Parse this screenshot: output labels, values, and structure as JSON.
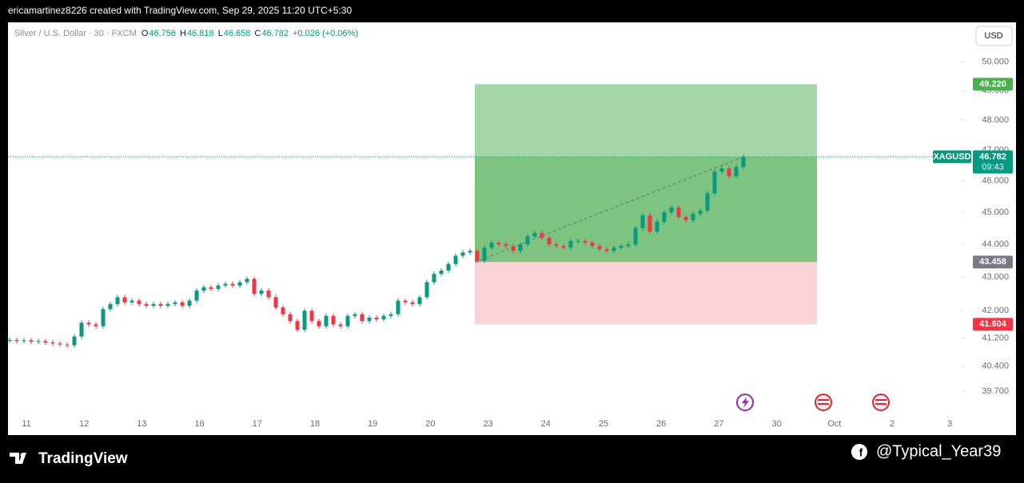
{
  "header": {
    "caption": "ericamartinez8226 created with TradingView.com, Sep 29, 2025 11:20 UTC+5:30",
    "symbol_title": "Silver / U.S. Dollar · 30 · FXCM",
    "ohlc": [
      {
        "key": "O",
        "value": "46.756"
      },
      {
        "key": "H",
        "value": "46.818"
      },
      {
        "key": "L",
        "value": "46.658"
      },
      {
        "key": "C",
        "value": "46.782"
      }
    ],
    "change": "+0.026 (+0.06%)",
    "currency": "USD"
  },
  "chart_data": {
    "type": "candlestick",
    "log_scale": true,
    "up_color": "#089981",
    "down_color": "#f23645",
    "categories": [
      "11",
      "12",
      "13",
      "16",
      "17",
      "18",
      "19",
      "20",
      "23",
      "24",
      "25",
      "26",
      "27",
      "30",
      "Oct",
      "2",
      "3"
    ],
    "closes": [
      41.15,
      41.12,
      41.14,
      41.1,
      41.12,
      41.08,
      41.05,
      41.02,
      41.0,
      41.25,
      41.65,
      41.6,
      41.55,
      42.05,
      42.2,
      42.4,
      42.25,
      42.3,
      42.2,
      42.15,
      42.2,
      42.15,
      42.2,
      42.25,
      42.15,
      42.3,
      42.6,
      42.7,
      42.65,
      42.75,
      42.8,
      42.75,
      42.85,
      42.95,
      42.5,
      42.6,
      42.4,
      42.1,
      41.9,
      41.7,
      41.45,
      42.0,
      41.7,
      41.55,
      41.85,
      41.6,
      41.55,
      41.85,
      41.9,
      41.7,
      41.8,
      41.75,
      41.85,
      41.9,
      42.3,
      42.25,
      42.2,
      42.4,
      42.85,
      43.1,
      43.2,
      43.4,
      43.65,
      43.75,
      43.8,
      43.5,
      43.9,
      44.05,
      44.0,
      43.95,
      43.8,
      44.0,
      44.25,
      44.35,
      44.2,
      44.0,
      43.95,
      43.9,
      44.1,
      44.1,
      44.05,
      43.95,
      43.85,
      43.8,
      43.9,
      43.95,
      44.0,
      44.5,
      44.9,
      44.4,
      44.7,
      45.0,
      45.15,
      44.85,
      44.75,
      44.95,
      45.05,
      45.6,
      46.3,
      46.4,
      46.15,
      46.45,
      46.782
    ],
    "ylim": [
      38.5,
      51.4
    ],
    "yticks": [
      {
        "value": 50,
        "label": "50.000"
      },
      {
        "value": 49,
        "label": "49.000"
      },
      {
        "value": 48,
        "label": "48.000"
      },
      {
        "value": 47,
        "label": "47.000"
      },
      {
        "value": 46,
        "label": "46.000"
      },
      {
        "value": 45,
        "label": "45.000"
      },
      {
        "value": 44,
        "label": "44.000"
      },
      {
        "value": 43,
        "label": "43.000"
      },
      {
        "value": 42,
        "label": "42.000"
      },
      {
        "value": 41.2,
        "label": "41.200"
      },
      {
        "value": 40.4,
        "label": "40.400"
      },
      {
        "value": 39.7,
        "label": "39.700"
      }
    ],
    "position": {
      "target": {
        "value": 49.22,
        "label": "49.220"
      },
      "entry": {
        "value": 43.458,
        "label": "43.458"
      },
      "stop": {
        "value": 41.604,
        "label": "41.604"
      }
    },
    "last_price": {
      "symbol": "XAGUSD",
      "value": 46.782,
      "label": "46.782",
      "timer": "09:43"
    }
  },
  "footer": {
    "brand": "TradingView",
    "handle": "@Typical_Year39"
  }
}
